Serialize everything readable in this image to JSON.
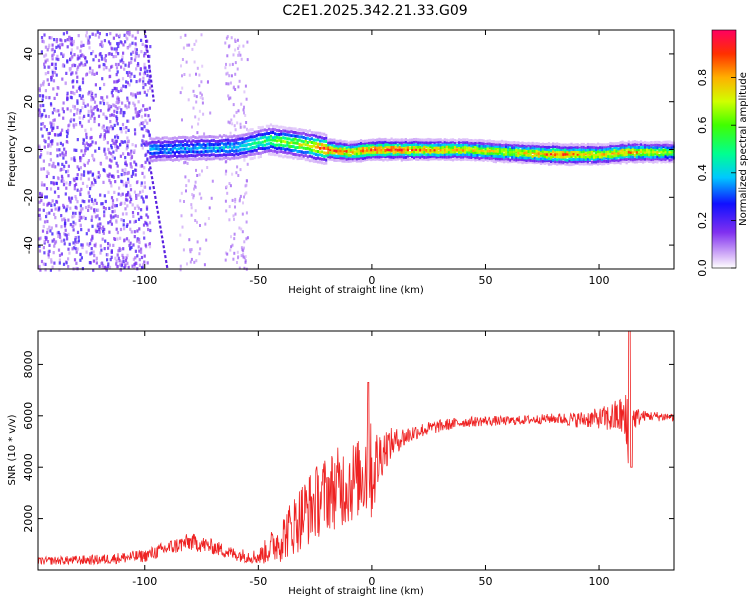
{
  "title": "C2E1.2025.342.21.33.G09",
  "chart_data": [
    {
      "type": "heatmap",
      "name": "spectrogram",
      "xlabel": "Height of straight line (km)",
      "ylabel": "Frequency (Hz)",
      "xlim": [
        -147,
        133
      ],
      "ylim": [
        -50,
        50
      ],
      "xticks": [
        -100,
        -50,
        0,
        50,
        100
      ],
      "xtick_labels": [
        "-100",
        "-50",
        "0",
        "50",
        "100"
      ],
      "yticks": [
        -40,
        -20,
        0,
        20,
        40
      ],
      "ytick_labels": [
        "-40",
        "-20",
        "0",
        "20",
        "40"
      ],
      "colorbar": {
        "label": "Normalized spectral amplitude",
        "range": [
          0,
          1
        ],
        "ticks": [
          0.0,
          0.2,
          0.4,
          0.6,
          0.8
        ],
        "tick_labels": [
          "0.0",
          "0.2",
          "0.4",
          "0.6",
          "0.8"
        ]
      },
      "ridge": {
        "description_points_height_km": [
          -98,
          -80,
          -60,
          -45,
          -30,
          -20,
          -10,
          0,
          20,
          40,
          60,
          80,
          100,
          113,
          133
        ],
        "frequency_hz": [
          0,
          0.5,
          1,
          4,
          2,
          0,
          -1,
          0,
          0,
          0,
          -1,
          -2,
          -2,
          -1,
          -1
        ],
        "amplitude": [
          0.35,
          0.35,
          0.4,
          0.55,
          0.7,
          0.9,
          0.8,
          0.9,
          0.85,
          0.75,
          0.7,
          0.85,
          0.75,
          0.8,
          0.6
        ]
      },
      "streaks": [
        {
          "x_start": -100,
          "y_start": 50,
          "x_end": -96,
          "y_end": 20
        },
        {
          "x_start": -98,
          "y_start": -5,
          "x_end": -90,
          "y_end": -50
        }
      ]
    },
    {
      "type": "line",
      "name": "snr",
      "xlabel": "Height of straight line (km)",
      "ylabel": "SNR (10 * v/v)",
      "xlim": [
        -147,
        133
      ],
      "ylim": [
        0,
        9300
      ],
      "xticks": [
        -100,
        -50,
        0,
        50,
        100
      ],
      "xtick_labels": [
        "-100",
        "-50",
        "0",
        "50",
        "100"
      ],
      "yticks": [
        2000,
        4000,
        6000,
        8000
      ],
      "ytick_labels": [
        "2000",
        "4000",
        "6000",
        "8000"
      ],
      "color": "#ee2222",
      "series_envelope": {
        "x": [
          -147,
          -120,
          -100,
          -90,
          -80,
          -70,
          -60,
          -50,
          -40,
          -30,
          -20,
          -10,
          -5,
          -2,
          0,
          5,
          10,
          20,
          30,
          40,
          50,
          60,
          70,
          80,
          90,
          100,
          105,
          110,
          112,
          113,
          115,
          120,
          133
        ],
        "mean": [
          350,
          400,
          550,
          850,
          1100,
          900,
          600,
          500,
          1200,
          2200,
          3000,
          3400,
          3600,
          4200,
          3700,
          4700,
          5000,
          5400,
          5600,
          5750,
          5800,
          5800,
          5850,
          5900,
          5850,
          5900,
          5900,
          6000,
          5500,
          5000,
          5900,
          6000,
          5950
        ],
        "amplitude": [
          150,
          200,
          250,
          300,
          350,
          300,
          250,
          300,
          900,
          1400,
          1500,
          1700,
          1500,
          2500,
          1800,
          900,
          500,
          300,
          250,
          200,
          200,
          180,
          180,
          200,
          300,
          400,
          600,
          800,
          1500,
          3500,
          500,
          200,
          180
        ]
      }
    }
  ]
}
